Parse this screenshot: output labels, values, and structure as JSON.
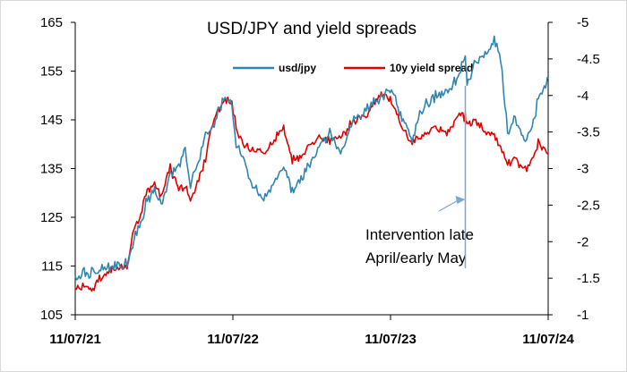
{
  "chart_data": {
    "type": "line",
    "title": "USD/JPY and yield spreads",
    "x_labels": [
      "11/07/21",
      "11/07/22",
      "11/07/23",
      "11/07/24"
    ],
    "x_range": [
      "2021-11-07",
      "2024-11-07"
    ],
    "y_left": {
      "ticks": [
        105,
        115,
        125,
        135,
        145,
        155,
        165
      ],
      "range": [
        105,
        165
      ]
    },
    "y_right": {
      "ticks": [
        -1,
        -1.5,
        -2,
        -2.5,
        -3,
        -3.5,
        -4,
        -4.5,
        -5
      ],
      "range": [
        -1,
        -5
      ],
      "inverted": true
    },
    "grid": false,
    "legend_position": "top-center",
    "series": [
      {
        "name": "usd/jpy",
        "axis": "left",
        "color": "#2e86b1",
        "points": [
          [
            "2021-11-07",
            113.0
          ],
          [
            "2021-12-15",
            113.8
          ],
          [
            "2022-01-20",
            114.6
          ],
          [
            "2022-02-25",
            115.2
          ],
          [
            "2022-03-07",
            115.4
          ],
          [
            "2022-03-20",
            119.5
          ],
          [
            "2022-04-05",
            123.0
          ],
          [
            "2022-04-20",
            128.0
          ],
          [
            "2022-05-10",
            130.5
          ],
          [
            "2022-05-25",
            127.0
          ],
          [
            "2022-06-15",
            134.0
          ],
          [
            "2022-07-05",
            136.0
          ],
          [
            "2022-07-20",
            138.5
          ],
          [
            "2022-08-01",
            132.0
          ],
          [
            "2022-08-20",
            136.0
          ],
          [
            "2022-09-05",
            142.0
          ],
          [
            "2022-09-25",
            144.5
          ],
          [
            "2022-10-20",
            150.0
          ],
          [
            "2022-11-05",
            148.0
          ],
          [
            "2022-11-15",
            139.5
          ],
          [
            "2022-12-01",
            137.0
          ],
          [
            "2022-12-20",
            132.0
          ],
          [
            "2023-01-15",
            128.5
          ],
          [
            "2023-02-05",
            131.0
          ],
          [
            "2023-03-05",
            136.0
          ],
          [
            "2023-03-25",
            130.5
          ],
          [
            "2023-04-20",
            134.0
          ],
          [
            "2023-05-20",
            138.5
          ],
          [
            "2023-06-20",
            142.0
          ],
          [
            "2023-07-15",
            138.5
          ],
          [
            "2023-08-15",
            145.0
          ],
          [
            "2023-09-15",
            147.5
          ],
          [
            "2023-10-20",
            150.0
          ],
          [
            "2023-11-10",
            151.5
          ],
          [
            "2023-12-01",
            146.0
          ],
          [
            "2023-12-28",
            141.0
          ],
          [
            "2024-01-20",
            147.5
          ],
          [
            "2024-02-20",
            150.0
          ],
          [
            "2024-03-20",
            151.0
          ],
          [
            "2024-04-15",
            154.5
          ],
          [
            "2024-04-29",
            158.0
          ],
          [
            "2024-05-03",
            152.0
          ],
          [
            "2024-05-20",
            156.5
          ],
          [
            "2024-06-20",
            159.0
          ],
          [
            "2024-07-05",
            161.5
          ],
          [
            "2024-07-20",
            157.5
          ],
          [
            "2024-08-05",
            142.5
          ],
          [
            "2024-08-20",
            145.5
          ],
          [
            "2024-09-15",
            140.5
          ],
          [
            "2024-10-01",
            143.5
          ],
          [
            "2024-10-15",
            149.5
          ],
          [
            "2024-11-01",
            152.5
          ],
          [
            "2024-11-07",
            153.5
          ]
        ]
      },
      {
        "name": "10y yield spread",
        "axis": "right",
        "color": "#e00000",
        "points": [
          [
            "2021-11-07",
            -1.4
          ],
          [
            "2021-12-15",
            -1.35
          ],
          [
            "2022-01-20",
            -1.6
          ],
          [
            "2022-02-25",
            -1.65
          ],
          [
            "2022-03-07",
            -1.65
          ],
          [
            "2022-03-20",
            -2.1
          ],
          [
            "2022-04-05",
            -2.3
          ],
          [
            "2022-04-20",
            -2.65
          ],
          [
            "2022-05-10",
            -2.8
          ],
          [
            "2022-05-25",
            -2.6
          ],
          [
            "2022-06-15",
            -3.0
          ],
          [
            "2022-07-05",
            -2.75
          ],
          [
            "2022-07-20",
            -2.75
          ],
          [
            "2022-08-01",
            -2.55
          ],
          [
            "2022-08-20",
            -2.85
          ],
          [
            "2022-09-05",
            -3.15
          ],
          [
            "2022-09-25",
            -3.7
          ],
          [
            "2022-10-20",
            -3.95
          ],
          [
            "2022-11-05",
            -3.9
          ],
          [
            "2022-11-15",
            -3.55
          ],
          [
            "2022-12-01",
            -3.35
          ],
          [
            "2022-12-20",
            -3.25
          ],
          [
            "2023-01-15",
            -3.2
          ],
          [
            "2023-02-05",
            -3.35
          ],
          [
            "2023-03-05",
            -3.55
          ],
          [
            "2023-03-25",
            -3.1
          ],
          [
            "2023-04-20",
            -3.2
          ],
          [
            "2023-05-20",
            -3.4
          ],
          [
            "2023-06-20",
            -3.4
          ],
          [
            "2023-07-15",
            -3.45
          ],
          [
            "2023-08-15",
            -3.65
          ],
          [
            "2023-09-15",
            -3.75
          ],
          [
            "2023-10-20",
            -4.05
          ],
          [
            "2023-11-10",
            -3.9
          ],
          [
            "2023-12-01",
            -3.6
          ],
          [
            "2023-12-28",
            -3.35
          ],
          [
            "2024-01-20",
            -3.45
          ],
          [
            "2024-02-20",
            -3.55
          ],
          [
            "2024-03-20",
            -3.5
          ],
          [
            "2024-04-15",
            -3.75
          ],
          [
            "2024-04-29",
            -3.7
          ],
          [
            "2024-05-03",
            -3.6
          ],
          [
            "2024-05-20",
            -3.65
          ],
          [
            "2024-06-20",
            -3.5
          ],
          [
            "2024-07-05",
            -3.45
          ],
          [
            "2024-07-20",
            -3.3
          ],
          [
            "2024-08-05",
            -3.05
          ],
          [
            "2024-08-20",
            -3.15
          ],
          [
            "2024-09-15",
            -3.0
          ],
          [
            "2024-10-01",
            -3.15
          ],
          [
            "2024-10-15",
            -3.35
          ],
          [
            "2024-11-01",
            -3.25
          ],
          [
            "2024-11-07",
            -3.2
          ]
        ]
      }
    ],
    "annotation": {
      "line1": "Intervention late",
      "line2": "April/early May",
      "vline_date": "2024-04-29",
      "arrow_color": "#7ba7d6"
    }
  }
}
